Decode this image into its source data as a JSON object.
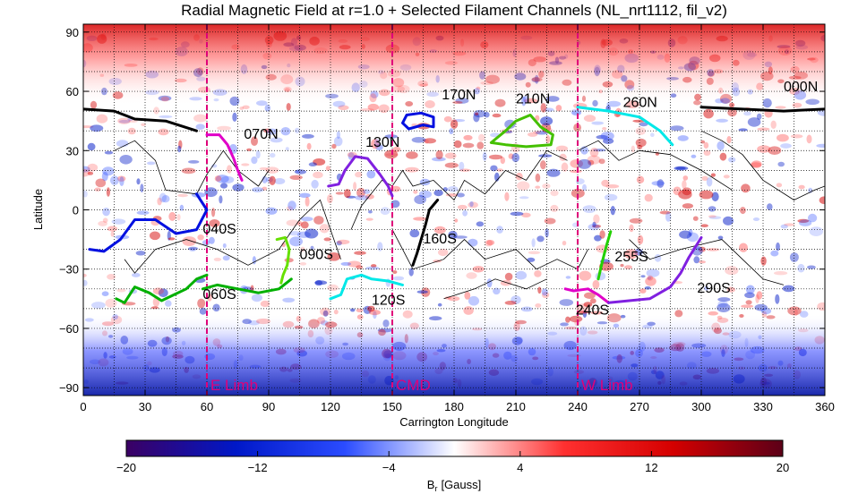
{
  "chart_data": {
    "type": "heatmap",
    "title": "Radial Magnetic Field at r=1.0 + Selected Filament Channels (NL_nrt1112, fil_v2)",
    "xlabel": "Carrington Longitude",
    "ylabel": "Latitude",
    "xlim": [
      0,
      360
    ],
    "ylim": [
      -94,
      94
    ],
    "xticks": [
      0,
      30,
      60,
      90,
      120,
      150,
      180,
      210,
      240,
      270,
      300,
      330,
      360
    ],
    "yticks": [
      -90,
      -60,
      -30,
      0,
      30,
      60,
      90
    ],
    "grid": true,
    "colorbar": {
      "label": "B",
      "label_sub": "r",
      "label_unit": "[Gauss]",
      "range": [
        -20,
        20
      ],
      "ticks": [
        -20,
        -12,
        -4,
        4,
        12,
        20
      ],
      "tick_labels": [
        "−20",
        "−12",
        "−4",
        "4",
        "12",
        "20"
      ],
      "colormap": [
        "#3b0063",
        "#0018c8",
        "#2b4cff",
        "#ffffff",
        "#ff3030",
        "#d40000",
        "#5c0018"
      ]
    },
    "limbs": [
      {
        "label": "E Limb",
        "lon": 60
      },
      {
        "label": "CMD",
        "lon": 150
      },
      {
        "label": "W Limb",
        "lon": 240
      }
    ],
    "limb_color": "#e0007a",
    "filaments": [
      {
        "label": "000N",
        "color": "#000000",
        "label_at": [
          340,
          60
        ],
        "points": [
          [
            0,
            51
          ],
          [
            15,
            50
          ],
          [
            25,
            46
          ],
          [
            40,
            45
          ],
          [
            55,
            40
          ]
        ],
        "points2": [
          [
            300,
            52
          ],
          [
            320,
            51
          ],
          [
            340,
            50
          ],
          [
            360,
            51
          ]
        ]
      },
      {
        "label": "040S",
        "color": "#0010e0",
        "label_at": [
          58,
          -12
        ],
        "points": [
          [
            3,
            -20
          ],
          [
            10,
            -21
          ],
          [
            18,
            -15
          ],
          [
            25,
            -5
          ],
          [
            35,
            -5
          ],
          [
            45,
            -12
          ],
          [
            55,
            -10
          ],
          [
            60,
            0
          ],
          [
            55,
            8
          ]
        ]
      },
      {
        "label": "060S",
        "color": "#00b000",
        "label_at": [
          58,
          -45
        ],
        "points": [
          [
            16,
            -45
          ],
          [
            20,
            -47
          ],
          [
            25,
            -39
          ],
          [
            32,
            -42
          ],
          [
            38,
            -46
          ],
          [
            44,
            -43
          ],
          [
            50,
            -40
          ],
          [
            55,
            -35
          ],
          [
            60,
            -33
          ]
        ],
        "points2": [
          [
            58,
            -40
          ],
          [
            65,
            -38
          ],
          [
            75,
            -40
          ],
          [
            85,
            -42
          ],
          [
            95,
            -40
          ],
          [
            101,
            -35
          ]
        ]
      },
      {
        "label": "070N",
        "color": "#e000c8",
        "label_at": [
          78,
          36
        ],
        "points": [
          [
            60,
            38
          ],
          [
            66,
            38
          ],
          [
            70,
            33
          ],
          [
            73,
            26
          ],
          [
            75,
            20
          ],
          [
            77,
            15
          ]
        ]
      },
      {
        "label": "090S",
        "color": "#66e000",
        "label_at": [
          105,
          -25
        ],
        "points": [
          [
            94,
            -15
          ],
          [
            98,
            -14
          ],
          [
            100,
            -20
          ],
          [
            99,
            -28
          ],
          [
            97,
            -33
          ],
          [
            96,
            -37
          ]
        ]
      },
      {
        "label": "120S",
        "color": "#00e8e8",
        "label_at": [
          140,
          -48
        ],
        "points": [
          [
            120,
            -45
          ],
          [
            125,
            -43
          ],
          [
            128,
            -35
          ],
          [
            135,
            -33
          ],
          [
            140,
            -35
          ],
          [
            148,
            -36
          ],
          [
            155,
            -38
          ]
        ]
      },
      {
        "label": "130N",
        "color": "#8020e0",
        "label_at": [
          137,
          32
        ],
        "points": [
          [
            119,
            12
          ],
          [
            124,
            13
          ],
          [
            127,
            20
          ],
          [
            132,
            27
          ],
          [
            138,
            26
          ],
          [
            144,
            18
          ],
          [
            148,
            12
          ],
          [
            150,
            7
          ]
        ]
      },
      {
        "label": "160S",
        "color": "#000000",
        "label_at": [
          165,
          -17
        ],
        "points": [
          [
            172,
            5
          ],
          [
            168,
            0
          ],
          [
            166,
            -8
          ],
          [
            164,
            -15
          ],
          [
            162,
            -22
          ],
          [
            160,
            -28
          ]
        ]
      },
      {
        "label": "170N",
        "color": "#0010e0",
        "label_at": [
          174,
          56
        ],
        "points": [
          [
            165,
            43
          ],
          [
            170,
            42
          ],
          [
            170,
            47
          ],
          [
            164,
            49
          ],
          [
            157,
            48
          ],
          [
            155,
            44
          ],
          [
            158,
            41
          ],
          [
            165,
            43
          ]
        ]
      },
      {
        "label": "210N",
        "color": "#44c000",
        "label_at": [
          210,
          54
        ],
        "points": [
          [
            198,
            34
          ],
          [
            205,
            40
          ],
          [
            210,
            45
          ],
          [
            217,
            48
          ],
          [
            222,
            42
          ],
          [
            228,
            38
          ],
          [
            227,
            33
          ],
          [
            215,
            32
          ],
          [
            205,
            33
          ],
          [
            198,
            34
          ]
        ]
      },
      {
        "label": "240S",
        "color": "#e000c8",
        "label_at": [
          239,
          -53
        ],
        "points": [
          [
            234,
            -40
          ],
          [
            238,
            -41
          ],
          [
            245,
            -40
          ],
          [
            250,
            -43
          ],
          [
            255,
            -47
          ]
        ]
      },
      {
        "label": "255S",
        "color": "#22d000",
        "label_at": [
          258,
          -26
        ],
        "points": [
          [
            256,
            -11
          ],
          [
            254,
            -18
          ],
          [
            252,
            -26
          ],
          [
            250,
            -35
          ]
        ]
      },
      {
        "label": "260N",
        "color": "#00e8e8",
        "label_at": [
          262,
          52
        ],
        "points": [
          [
            240,
            52
          ],
          [
            255,
            50
          ],
          [
            270,
            47
          ],
          [
            280,
            40
          ],
          [
            286,
            33
          ]
        ]
      },
      {
        "label": "290S",
        "color": "#8020e0",
        "label_at": [
          298,
          -42
        ],
        "points": [
          [
            255,
            -47
          ],
          [
            265,
            -46
          ],
          [
            275,
            -45
          ],
          [
            285,
            -39
          ],
          [
            290,
            -32
          ],
          [
            294,
            -24
          ],
          [
            300,
            -14
          ]
        ]
      }
    ],
    "neutral_line_color": "#000000",
    "neutral_lines": [
      [
        [
          15,
          30
        ],
        [
          25,
          35
        ],
        [
          35,
          25
        ],
        [
          40,
          10
        ],
        [
          55,
          8
        ],
        [
          60,
          18
        ],
        [
          68,
          30
        ],
        [
          75,
          20
        ],
        [
          85,
          12
        ],
        [
          90,
          20
        ]
      ],
      [
        [
          20,
          -25
        ],
        [
          25,
          -32
        ],
        [
          35,
          -20
        ],
        [
          50,
          -15
        ],
        [
          65,
          -20
        ],
        [
          80,
          -28
        ],
        [
          95,
          -20
        ],
        [
          105,
          -5
        ],
        [
          115,
          5
        ],
        [
          120,
          -10
        ],
        [
          125,
          -25
        ]
      ],
      [
        [
          130,
          -10
        ],
        [
          135,
          2
        ],
        [
          145,
          15
        ],
        [
          150,
          12
        ],
        [
          155,
          20
        ],
        [
          160,
          12
        ],
        [
          170,
          15
        ],
        [
          180,
          5
        ],
        [
          185,
          15
        ],
        [
          195,
          8
        ],
        [
          205,
          20
        ],
        [
          215,
          15
        ],
        [
          225,
          30
        ],
        [
          235,
          25
        ]
      ],
      [
        [
          150,
          -10
        ],
        [
          155,
          -20
        ],
        [
          160,
          -30
        ],
        [
          175,
          -25
        ],
        [
          185,
          -15
        ],
        [
          195,
          -25
        ],
        [
          210,
          -20
        ],
        [
          220,
          -30
        ],
        [
          230,
          -25
        ],
        [
          240,
          -30
        ],
        [
          245,
          -20
        ]
      ],
      [
        [
          265,
          -15
        ],
        [
          275,
          -25
        ],
        [
          290,
          -20
        ],
        [
          310,
          -15
        ],
        [
          320,
          -25
        ],
        [
          330,
          -35
        ],
        [
          340,
          -38
        ]
      ],
      [
        [
          300,
          40
        ],
        [
          310,
          35
        ],
        [
          320,
          28
        ],
        [
          330,
          15
        ],
        [
          345,
          5
        ],
        [
          355,
          10
        ],
        [
          360,
          12
        ]
      ],
      [
        [
          240,
          30
        ],
        [
          250,
          35
        ],
        [
          260,
          25
        ],
        [
          270,
          30
        ],
        [
          285,
          28
        ],
        [
          300,
          20
        ],
        [
          315,
          10
        ]
      ],
      [
        [
          175,
          -45
        ],
        [
          190,
          -40
        ],
        [
          200,
          -35
        ],
        [
          215,
          -40
        ],
        [
          225,
          -35
        ]
      ]
    ]
  }
}
